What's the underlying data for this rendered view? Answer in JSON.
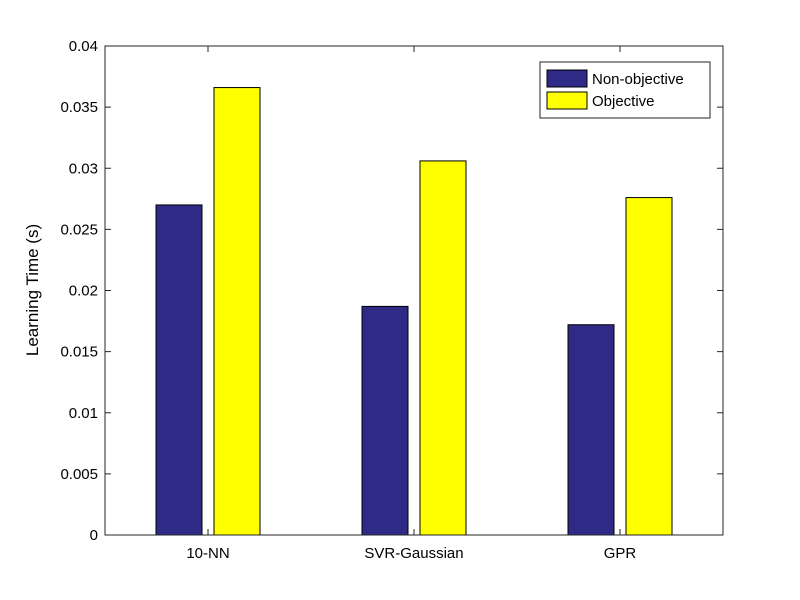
{
  "chart_data": {
    "type": "bar",
    "categories": [
      "10-NN",
      "SVR-Gaussian",
      "GPR"
    ],
    "series": [
      {
        "name": "Non-objective",
        "color": "#2e2a86",
        "values": [
          0.027,
          0.0187,
          0.0172
        ]
      },
      {
        "name": "Objective",
        "color": "#ffff00",
        "values": [
          0.0366,
          0.0306,
          0.0276
        ]
      }
    ],
    "title": "",
    "xlabel": "",
    "ylabel": "Learning Time (s)",
    "ylim": [
      0,
      0.04
    ],
    "yticks": [
      0,
      0.005,
      0.01,
      0.015,
      0.02,
      0.025,
      0.03,
      0.035,
      0.04
    ],
    "ytick_labels": [
      "0",
      "0.005",
      "0.01",
      "0.015",
      "0.02",
      "0.025",
      "0.03",
      "0.035",
      "0.04"
    ],
    "grid": false,
    "legend": {
      "placement": "top-right",
      "entries": [
        "Non-objective",
        "Objective"
      ]
    }
  }
}
